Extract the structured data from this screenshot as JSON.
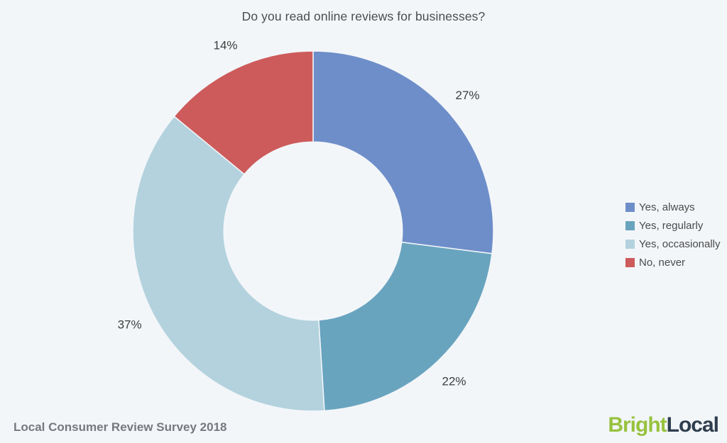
{
  "page": {
    "background": "#f3f6f9"
  },
  "chart_data": {
    "type": "pie",
    "subtype": "donut",
    "title": "Do you read online reviews for businesses?",
    "categories": [
      "Yes, always",
      "Yes, regularly",
      "Yes, occasionally",
      "No, never"
    ],
    "values": [
      27,
      22,
      37,
      14
    ],
    "labels": [
      "27%",
      "22%",
      "37%",
      "14%"
    ],
    "colors": [
      "#6e8ec9",
      "#69a4bf",
      "#b3d2de",
      "#cd5b5b"
    ],
    "start_angle_deg": 0,
    "direction": "clockwise",
    "inner_radius_ratio": 0.495,
    "legend_position": "right",
    "label_color": "#3d3d3d",
    "title_color": "#4c4c4c"
  },
  "footer": {
    "source": "Local Consumer Review Survey 2018"
  },
  "logo": {
    "text_primary": "Bright",
    "text_secondary": "Local",
    "primary_color": "#97c23e",
    "secondary_color": "#2f3e4e"
  }
}
